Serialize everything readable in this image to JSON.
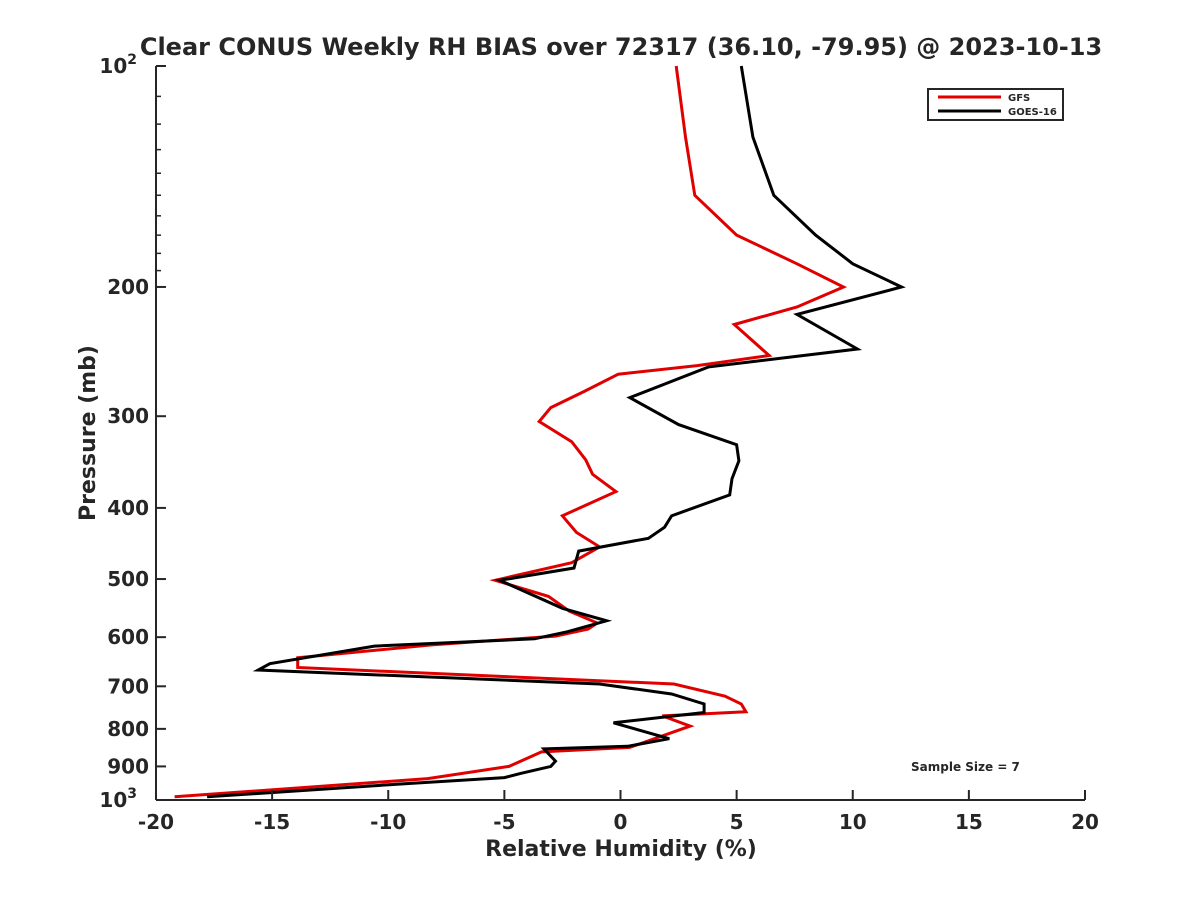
{
  "chart_data": {
    "type": "line",
    "title": "Clear CONUS Weekly RH BIAS over 72317 (36.10, -79.95) @ 2023-10-13",
    "xlabel": "Relative Humidity (%)",
    "ylabel": "Pressure (mb)",
    "xlim": [
      -20,
      20
    ],
    "ylim": [
      100,
      1000
    ],
    "y_scale": "log",
    "y_reversed": true,
    "grid": false,
    "legend_position": "top-right",
    "x_ticks": [
      {
        "value": -20,
        "label": "-20"
      },
      {
        "value": -15,
        "label": "-15"
      },
      {
        "value": -10,
        "label": "-10"
      },
      {
        "value": -5,
        "label": "-5"
      },
      {
        "value": 0,
        "label": "0"
      },
      {
        "value": 5,
        "label": "5"
      },
      {
        "value": 10,
        "label": "10"
      },
      {
        "value": 15,
        "label": "15"
      },
      {
        "value": 20,
        "label": "20"
      }
    ],
    "y_ticks": [
      {
        "value": 100,
        "base": "10",
        "exp": "2"
      },
      {
        "value": 200,
        "base": "200",
        "exp": ""
      },
      {
        "value": 300,
        "base": "300",
        "exp": ""
      },
      {
        "value": 400,
        "base": "400",
        "exp": ""
      },
      {
        "value": 500,
        "base": "500",
        "exp": ""
      },
      {
        "value": 600,
        "base": "600",
        "exp": ""
      },
      {
        "value": 700,
        "base": "700",
        "exp": ""
      },
      {
        "value": 800,
        "base": "800",
        "exp": ""
      },
      {
        "value": 900,
        "base": "900",
        "exp": ""
      },
      {
        "value": 1000,
        "base": "10",
        "exp": "3"
      }
    ],
    "series": [
      {
        "name": "GFS",
        "color": "#e00000",
        "points": [
          [
            2.4,
            100
          ],
          [
            2.8,
            125
          ],
          [
            3.2,
            150
          ],
          [
            5.0,
            170
          ],
          [
            7.6,
            186
          ],
          [
            9.6,
            200
          ],
          [
            7.6,
            213
          ],
          [
            4.9,
            225
          ],
          [
            6.4,
            248
          ],
          [
            3.3,
            256
          ],
          [
            -0.1,
            263
          ],
          [
            -1.6,
            278
          ],
          [
            -3.0,
            292
          ],
          [
            -3.5,
            305
          ],
          [
            -2.1,
            325
          ],
          [
            -1.5,
            344
          ],
          [
            -1.2,
            360
          ],
          [
            -0.2,
            380
          ],
          [
            -2.5,
            410
          ],
          [
            -1.9,
            432
          ],
          [
            -0.9,
            452
          ],
          [
            -2.1,
            475
          ],
          [
            -5.4,
            502
          ],
          [
            -3.1,
            528
          ],
          [
            -2.2,
            553
          ],
          [
            -1.0,
            574
          ],
          [
            -1.4,
            585
          ],
          [
            -2.8,
            598
          ],
          [
            -8.2,
            615
          ],
          [
            -13.9,
            640
          ],
          [
            -13.9,
            660
          ],
          [
            2.3,
            695
          ],
          [
            4.5,
            722
          ],
          [
            5.2,
            740
          ],
          [
            5.4,
            758
          ],
          [
            1.8,
            768
          ],
          [
            3.0,
            793
          ],
          [
            0.4,
            848
          ],
          [
            -3.4,
            860
          ],
          [
            -4.8,
            900
          ],
          [
            -8.3,
            935
          ],
          [
            -19.2,
            990
          ]
        ]
      },
      {
        "name": "GOES-16",
        "color": "#000000",
        "points": [
          [
            5.2,
            100
          ],
          [
            5.7,
            125
          ],
          [
            6.6,
            150
          ],
          [
            8.4,
            170
          ],
          [
            10.0,
            186
          ],
          [
            12.1,
            200
          ],
          [
            7.6,
            218
          ],
          [
            10.2,
            243
          ],
          [
            3.8,
            257
          ],
          [
            0.4,
            283
          ],
          [
            2.5,
            308
          ],
          [
            5.0,
            328
          ],
          [
            5.1,
            345
          ],
          [
            4.8,
            365
          ],
          [
            4.7,
            384
          ],
          [
            2.2,
            410
          ],
          [
            1.9,
            425
          ],
          [
            1.2,
            440
          ],
          [
            -1.8,
            458
          ],
          [
            -2.0,
            483
          ],
          [
            -5.2,
            502
          ],
          [
            -2.5,
            548
          ],
          [
            -0.6,
            570
          ],
          [
            -2.3,
            590
          ],
          [
            -3.7,
            603
          ],
          [
            -10.6,
            617
          ],
          [
            -15.1,
            652
          ],
          [
            -15.6,
            665
          ],
          [
            -0.9,
            695
          ],
          [
            2.2,
            717
          ],
          [
            3.6,
            740
          ],
          [
            3.6,
            760
          ],
          [
            -0.3,
            785
          ],
          [
            2.1,
            825
          ],
          [
            0.3,
            845
          ],
          [
            -3.3,
            852
          ],
          [
            -2.8,
            885
          ],
          [
            -3.0,
            900
          ],
          [
            -4.3,
            920
          ],
          [
            -5.0,
            932
          ],
          [
            -9.2,
            950
          ],
          [
            -17.8,
            990
          ]
        ]
      }
    ],
    "annotation": "Sample Size = 7"
  }
}
